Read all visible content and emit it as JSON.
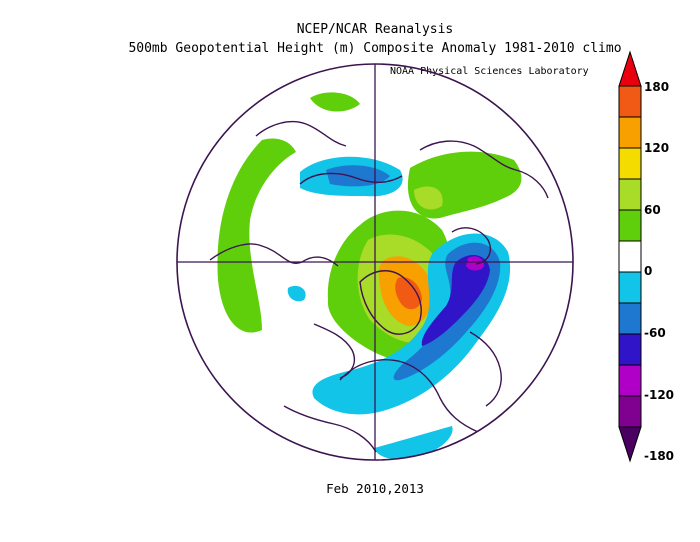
{
  "header": {
    "title_line1": "NCEP/NCAR Reanalysis",
    "title_line2": "500mb Geopotential Height (m) Composite Anomaly 1981-2010 climo",
    "credit": "NOAA Physical Sciences Laboratory"
  },
  "footer": {
    "caption": "Feb 2010,2013"
  },
  "map": {
    "projection": "north polar stereographic",
    "variable": "500mb geopotential height anomaly",
    "units": "m"
  },
  "colorbar": {
    "labels": [
      "180",
      "120",
      "60",
      "0",
      "-60",
      "-120",
      "-180"
    ],
    "levels": [
      180,
      150,
      120,
      90,
      60,
      30,
      -30,
      -60,
      -90,
      -120,
      -150,
      -180
    ],
    "colors": {
      "gt180": "#e8000e",
      "150_180": "#f05a14",
      "120_150": "#f7a000",
      "90_120": "#f5dc00",
      "60_90": "#a8dc28",
      "30_60": "#5fcf0c",
      "neutral": "#ffffff",
      "m30_m60": "#11c4e8",
      "m60_m90": "#1f78d0",
      "m90_m120": "#3014c8",
      "m120_m150": "#b000c8",
      "m150_m180": "#800090",
      "lt_m180": "#4a0060"
    },
    "outline_color": "#3c1450"
  }
}
